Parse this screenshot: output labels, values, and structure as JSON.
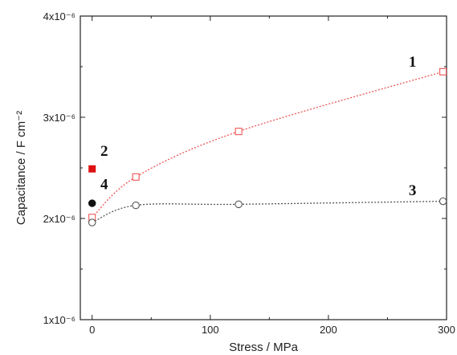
{
  "chart_data": {
    "type": "scatter",
    "xlabel": "Stress / MPa",
    "ylabel": "Capacitance / F cm⁻²",
    "xlim": [
      -10,
      300
    ],
    "ylim": [
      1e-06,
      4e-06
    ],
    "x_ticks": [
      0,
      100,
      200,
      300
    ],
    "x_tick_labels": [
      "0",
      "100",
      "200",
      "300"
    ],
    "y_ticks": [
      1e-06,
      2e-06,
      3e-06,
      4e-06
    ],
    "y_tick_labels": [
      "1x10⁻⁶",
      "2x10⁻⁶",
      "3x10⁻⁶",
      "4x10⁻⁶"
    ],
    "grid": false,
    "legend": "none",
    "series": [
      {
        "label": "1",
        "color": "#ee5555",
        "marker": "open-square",
        "line": "dotted fitted curve",
        "x": [
          0,
          37,
          124,
          297
        ],
        "y": [
          2.01e-06,
          2.41e-06,
          2.86e-06,
          3.45e-06
        ]
      },
      {
        "label": "2",
        "color": "#dd1111",
        "marker": "filled-square",
        "x": [
          0
        ],
        "y": [
          2.49e-06
        ]
      },
      {
        "label": "3",
        "color": "#555555",
        "marker": "open-circle",
        "line": "dotted fitted curve",
        "x": [
          0,
          37,
          124,
          297
        ],
        "y": [
          1.96e-06,
          2.13e-06,
          2.14e-06,
          2.17e-06
        ]
      },
      {
        "label": "4",
        "color": "#111111",
        "marker": "filled-circle",
        "x": [
          0
        ],
        "y": [
          2.15e-06
        ]
      }
    ],
    "annotations": [
      {
        "text": "1",
        "x": 268,
        "y": 3.5e-06,
        "color": "#111111"
      },
      {
        "text": "2",
        "x": 7,
        "y": 2.62e-06,
        "color": "#111111"
      },
      {
        "text": "3",
        "x": 268,
        "y": 2.23e-06,
        "color": "#111111"
      },
      {
        "text": "4",
        "x": 7,
        "y": 2.29e-06,
        "color": "#111111"
      }
    ]
  }
}
